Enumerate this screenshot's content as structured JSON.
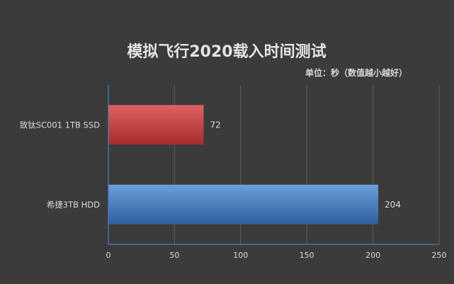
{
  "chart_data": {
    "type": "bar",
    "orientation": "horizontal",
    "title": "模拟飞行2020载入时间测试",
    "subtitle": "单位：秒（数值越小越好）",
    "categories": [
      "致钛SC001 1TB SSD",
      "希捷3TB HDD"
    ],
    "values": [
      72,
      204
    ],
    "data_labels": [
      "72",
      "204"
    ],
    "xlim": [
      0,
      250
    ],
    "x_ticks": [
      "0",
      "50",
      "100",
      "150",
      "200",
      "250"
    ],
    "grid": true,
    "legend": "none",
    "colors": {
      "background": "#3b3b3b",
      "bars": [
        "#b83838",
        "#3f74b6"
      ],
      "gridline": "#5e5e5e",
      "axis": "#4f7fc0",
      "text": "#d9d9d9",
      "title": "#e3e3e3"
    }
  }
}
